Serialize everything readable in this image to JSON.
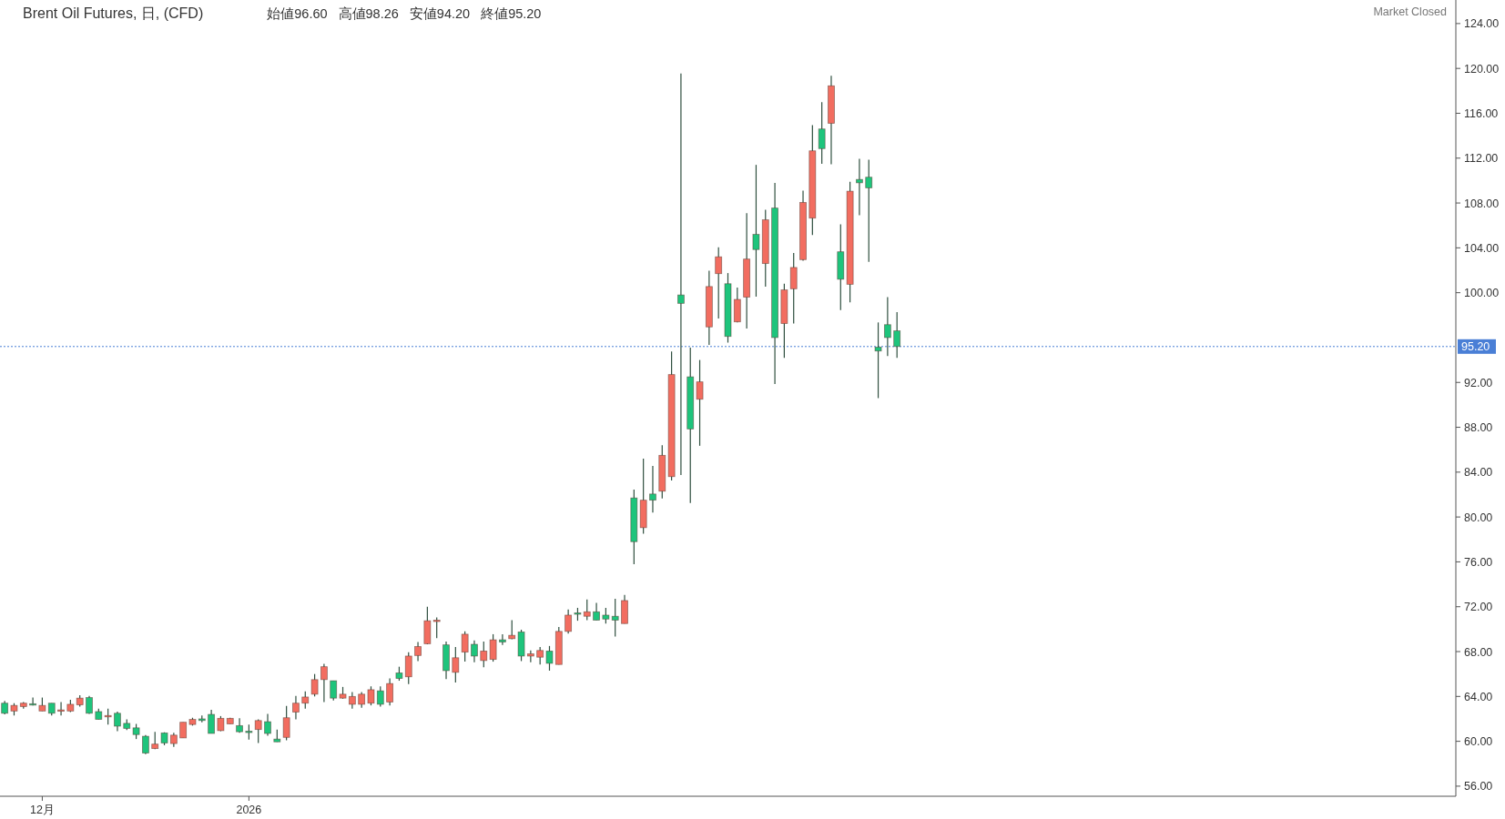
{
  "chart_data": {
    "type": "candlestick",
    "title": "Brent Oil Futures, 日, (CFD)",
    "annotations": [
      "始値96.60",
      "高値98.26",
      "安値94.20",
      "終値95.20",
      "Market Closed"
    ],
    "categories": [
      null,
      null,
      null,
      null,
      "12月",
      null,
      null,
      null,
      null,
      null,
      null,
      null,
      null,
      null,
      null,
      null,
      null,
      null,
      null,
      null,
      null,
      null,
      null,
      null,
      null,
      null,
      "2026",
      null,
      null,
      null,
      null,
      null,
      null,
      null,
      null,
      null,
      null,
      null,
      null,
      null,
      null,
      null,
      null,
      null,
      null,
      null,
      null,
      null,
      null,
      null,
      null,
      null,
      null,
      null,
      null,
      null,
      null,
      null,
      null,
      null,
      null,
      null,
      null,
      null,
      null,
      null,
      null,
      null,
      null,
      null,
      null,
      null,
      null,
      null,
      null,
      null,
      null,
      null,
      null,
      null,
      null,
      null,
      null,
      null,
      null,
      null,
      null,
      null,
      null,
      null,
      null,
      null,
      null,
      null,
      null,
      null,
      null,
      null,
      null,
      null,
      null,
      null,
      null,
      null,
      null,
      null,
      null,
      null,
      null,
      null,
      null,
      null,
      null,
      null,
      null,
      null,
      null,
      null,
      null,
      null,
      null,
      null,
      null,
      null,
      null,
      null,
      null,
      null,
      null,
      null,
      null,
      null,
      null,
      null,
      null,
      null,
      null,
      null,
      null,
      null,
      null,
      null,
      null,
      null,
      null,
      null,
      null,
      null,
      null,
      null,
      null,
      null,
      null,
      null,
      null
    ],
    "ohlc": [
      [
        63.4,
        63.6,
        62.4,
        62.5
      ],
      [
        62.7,
        63.4,
        62.3,
        63.2
      ],
      [
        63.1,
        63.5,
        62.9,
        63.4
      ],
      [
        63.35,
        63.9,
        63.2,
        63.25
      ],
      [
        62.7,
        63.9,
        62.7,
        63.2
      ],
      [
        63.4,
        63.4,
        62.3,
        62.5
      ],
      [
        62.7,
        63.5,
        62.3,
        62.8
      ],
      [
        62.7,
        63.7,
        62.6,
        63.3
      ],
      [
        63.25,
        64.1,
        63.1,
        63.85
      ],
      [
        63.9,
        64.05,
        62.45,
        62.5
      ],
      [
        62.65,
        62.9,
        61.95,
        61.95
      ],
      [
        62.2,
        62.9,
        61.5,
        62.3
      ],
      [
        62.5,
        62.65,
        60.9,
        61.35
      ],
      [
        61.6,
        61.95,
        61.0,
        61.15
      ],
      [
        61.2,
        61.55,
        60.2,
        60.6
      ],
      [
        60.45,
        60.55,
        58.85,
        58.95
      ],
      [
        59.35,
        60.85,
        59.3,
        59.75
      ],
      [
        60.75,
        60.8,
        59.65,
        59.85
      ],
      [
        59.8,
        60.75,
        59.5,
        60.55
      ],
      [
        60.3,
        61.7,
        60.3,
        61.7
      ],
      [
        61.5,
        62.1,
        61.4,
        61.95
      ],
      [
        62.0,
        62.3,
        61.7,
        61.85
      ],
      [
        62.4,
        62.8,
        60.7,
        60.7
      ],
      [
        60.95,
        62.25,
        60.9,
        62.05
      ],
      [
        61.55,
        62.1,
        61.55,
        62.05
      ],
      [
        61.4,
        62.05,
        60.75,
        60.85
      ],
      [
        60.9,
        61.5,
        60.15,
        60.85
      ],
      [
        61.05,
        61.95,
        59.85,
        61.85
      ],
      [
        61.75,
        62.45,
        60.5,
        60.7
      ],
      [
        60.2,
        61.05,
        59.95,
        59.95
      ],
      [
        60.35,
        63.15,
        60.1,
        62.1
      ],
      [
        62.6,
        64.05,
        61.95,
        63.4
      ],
      [
        63.4,
        64.45,
        62.9,
        63.95
      ],
      [
        64.2,
        66.0,
        64.0,
        65.5
      ],
      [
        65.5,
        66.9,
        63.5,
        66.65
      ],
      [
        65.4,
        65.4,
        63.65,
        63.85
      ],
      [
        63.85,
        64.85,
        63.8,
        64.2
      ],
      [
        63.3,
        64.4,
        62.9,
        64.0
      ],
      [
        63.3,
        64.4,
        63.0,
        64.2
      ],
      [
        63.4,
        64.9,
        63.2,
        64.6
      ],
      [
        64.5,
        64.9,
        63.1,
        63.3
      ],
      [
        63.5,
        65.6,
        63.2,
        65.15
      ],
      [
        66.1,
        66.65,
        65.4,
        65.6
      ],
      [
        65.75,
        67.95,
        65.1,
        67.6
      ],
      [
        67.65,
        68.85,
        67.15,
        68.45
      ],
      [
        68.7,
        72.0,
        68.65,
        70.75
      ],
      [
        70.7,
        71.05,
        69.2,
        70.8
      ],
      [
        68.6,
        68.9,
        65.55,
        66.3
      ],
      [
        66.15,
        68.4,
        65.25,
        67.45
      ],
      [
        67.95,
        69.8,
        67.1,
        69.55
      ],
      [
        68.65,
        69.0,
        67.05,
        67.6
      ],
      [
        67.2,
        68.9,
        66.6,
        68.05
      ],
      [
        67.3,
        69.55,
        67.1,
        69.05
      ],
      [
        69.05,
        69.55,
        68.6,
        68.85
      ],
      [
        69.15,
        70.8,
        69.1,
        69.45
      ],
      [
        69.75,
        69.95,
        67.15,
        67.6
      ],
      [
        67.6,
        68.1,
        67.05,
        67.8
      ],
      [
        67.5,
        68.4,
        66.85,
        68.1
      ],
      [
        68.05,
        68.5,
        66.3,
        66.95
      ],
      [
        66.85,
        70.2,
        66.85,
        69.8
      ],
      [
        69.8,
        71.75,
        69.6,
        71.25
      ],
      [
        71.45,
        71.9,
        70.75,
        71.35
      ],
      [
        71.15,
        72.65,
        70.8,
        71.55
      ],
      [
        71.55,
        72.35,
        70.8,
        70.8
      ],
      [
        71.25,
        71.9,
        70.5,
        70.9
      ],
      [
        71.15,
        72.7,
        69.35,
        70.8
      ],
      [
        70.5,
        73.05,
        70.5,
        72.55
      ],
      [
        81.7,
        82.45,
        75.8,
        77.8
      ],
      [
        79.05,
        85.2,
        78.5,
        81.5
      ],
      [
        82.05,
        84.55,
        80.4,
        81.5
      ],
      [
        82.3,
        86.4,
        81.65,
        85.5
      ],
      [
        83.6,
        94.75,
        83.25,
        92.7
      ],
      [
        99.8,
        119.55,
        83.75,
        99.05
      ],
      [
        92.5,
        95.1,
        81.25,
        87.85
      ],
      [
        90.5,
        94.0,
        86.35,
        92.05
      ],
      [
        96.95,
        101.95,
        95.35,
        100.55
      ],
      [
        101.7,
        104.05,
        97.7,
        103.2
      ],
      [
        100.8,
        101.75,
        95.55,
        96.1
      ],
      [
        97.4,
        100.45,
        97.35,
        99.4
      ],
      [
        99.6,
        107.1,
        96.8,
        103.0
      ],
      [
        105.2,
        111.4,
        99.65,
        103.85
      ],
      [
        102.6,
        107.4,
        100.55,
        106.5
      ],
      [
        107.55,
        109.8,
        91.85,
        96.0
      ],
      [
        97.25,
        100.8,
        94.2,
        100.25
      ],
      [
        100.35,
        103.55,
        97.25,
        102.25
      ],
      [
        102.95,
        109.1,
        102.85,
        108.05
      ],
      [
        106.65,
        114.95,
        105.15,
        112.65
      ],
      [
        114.6,
        117.0,
        111.5,
        112.85
      ],
      [
        115.1,
        119.35,
        111.45,
        118.45
      ],
      [
        103.65,
        106.1,
        98.45,
        101.2
      ],
      [
        100.75,
        109.9,
        99.15,
        109.05
      ],
      [
        110.1,
        111.95,
        106.9,
        109.8
      ],
      [
        110.3,
        111.85,
        102.75,
        109.35
      ],
      [
        95.15,
        97.35,
        90.6,
        94.8
      ],
      [
        97.15,
        99.6,
        94.35,
        96.0
      ],
      [
        96.6,
        98.26,
        94.2,
        95.2
      ],
      null,
      null,
      null,
      null,
      null,
      null,
      null,
      null,
      null,
      null,
      null,
      null,
      null,
      null,
      null,
      null,
      null,
      null,
      null,
      null,
      null,
      null,
      null,
      null,
      null,
      null,
      null,
      null,
      null,
      null,
      null,
      null,
      null,
      null,
      null,
      null,
      null,
      null,
      null,
      null,
      null,
      null,
      null,
      null,
      null,
      null,
      null,
      null,
      null,
      null,
      null,
      null,
      null,
      null,
      null,
      null,
      null,
      null,
      null
    ],
    "colors": [
      "#1ec47c",
      "#f26d60",
      "#f26d60",
      "#1ec47c",
      "#f26d60",
      "#1ec47c",
      "#f26d60",
      "#f26d60",
      "#f26d60",
      "#1ec47c",
      "#1ec47c",
      "#f26d60",
      "#1ec47c",
      "#1ec47c",
      "#1ec47c",
      "#1ec47c",
      "#f26d60",
      "#1ec47c",
      "#f26d60",
      "#f26d60",
      "#f26d60",
      "#1ec47c",
      "#1ec47c",
      "#f26d60",
      "#f26d60",
      "#1ec47c",
      "#1ec47c",
      "#f26d60",
      "#1ec47c",
      "#1ec47c",
      "#f26d60",
      "#f26d60",
      "#f26d60",
      "#f26d60",
      "#f26d60",
      "#1ec47c",
      "#f26d60",
      "#f26d60",
      "#f26d60",
      "#f26d60",
      "#1ec47c",
      "#f26d60",
      "#1ec47c",
      "#f26d60",
      "#f26d60",
      "#f26d60",
      "#f26d60",
      "#1ec47c",
      "#f26d60",
      "#f26d60",
      "#1ec47c",
      "#f26d60",
      "#f26d60",
      "#1ec47c",
      "#f26d60",
      "#1ec47c",
      "#f26d60",
      "#f26d60",
      "#1ec47c",
      "#f26d60",
      "#f26d60",
      "#1ec47c",
      "#f26d60",
      "#1ec47c",
      "#1ec47c",
      "#1ec47c",
      "#f26d60",
      "#1ec47c",
      "#f26d60",
      "#1ec47c",
      "#f26d60",
      "#f26d60",
      "#1ec47c",
      "#1ec47c",
      "#f26d60",
      "#f26d60",
      "#f26d60",
      "#1ec47c",
      "#f26d60",
      "#f26d60",
      "#1ec47c",
      "#f26d60",
      "#1ec47c",
      "#f26d60",
      "#f26d60",
      "#f26d60",
      "#f26d60",
      "#1ec47c",
      "#f26d60",
      "#1ec47c",
      "#f26d60",
      "#1ec47c",
      "#1ec47c",
      "#1ec47c",
      "#1ec47c",
      "#1ec47c",
      null,
      null,
      null,
      null,
      null,
      null,
      null,
      null,
      null,
      null,
      null,
      null,
      null,
      null,
      null,
      null,
      null,
      null,
      null,
      null,
      null,
      null,
      null,
      null,
      null,
      null,
      null,
      null,
      null,
      null,
      null,
      null,
      null,
      null,
      null,
      null,
      null,
      null,
      null,
      null,
      null,
      null,
      null,
      null,
      null,
      null,
      null,
      null,
      null,
      null,
      null,
      null,
      null,
      null,
      null,
      null,
      null,
      null,
      null
    ],
    "ylim": [
      55.1,
      126.1
    ],
    "yticks": [
      {
        "value": 56,
        "label": "56.00"
      },
      {
        "value": 60,
        "label": "60.00"
      },
      {
        "value": 64,
        "label": "64.00"
      },
      {
        "value": 68,
        "label": "68.00"
      },
      {
        "value": 72,
        "label": "72.00"
      },
      {
        "value": 76,
        "label": "76.00"
      },
      {
        "value": 80,
        "label": "80.00"
      },
      {
        "value": 84,
        "label": "84.00"
      },
      {
        "value": 88,
        "label": "88.00"
      },
      {
        "value": 92,
        "label": "92.00"
      },
      {
        "value": 100,
        "label": "100.00"
      },
      {
        "value": 104,
        "label": "104.00"
      },
      {
        "value": 108,
        "label": "108.00"
      },
      {
        "value": 112,
        "label": "112.00"
      },
      {
        "value": 116,
        "label": "116.00"
      },
      {
        "value": 120,
        "label": "120.00"
      },
      {
        "value": 124,
        "label": "124.00"
      }
    ],
    "ref_lines": [
      {
        "axis": "y",
        "value": 95.2,
        "label": "95.20",
        "color": "#4a7fd6",
        "line_style": "dotted"
      }
    ],
    "grid": false
  }
}
